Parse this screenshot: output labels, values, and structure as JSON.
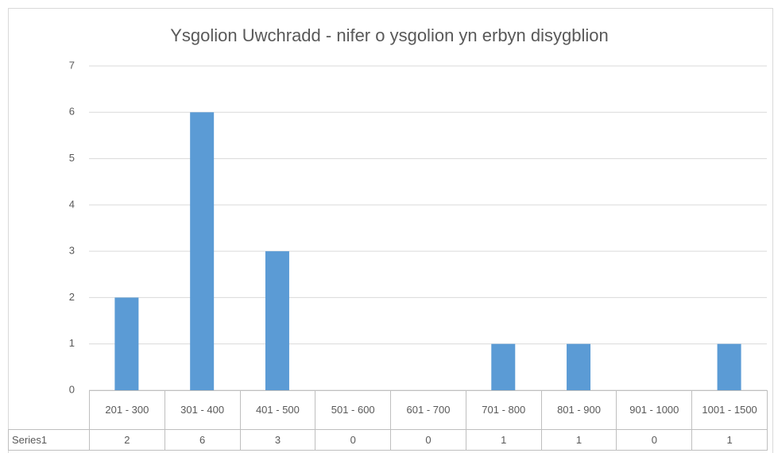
{
  "chart_data": {
    "type": "bar",
    "title": "Ysgolion Uwchradd - nifer o ysgolion yn erbyn disygblion",
    "categories": [
      "201 - 300",
      "301 - 400",
      "401 - 500",
      "501 - 600",
      "601 - 700",
      "701 - 800",
      "801 - 900",
      "901 - 1000",
      "1001 - 1500"
    ],
    "series": [
      {
        "name": "Series1",
        "color": "#5b9bd5",
        "values": [
          2,
          6,
          3,
          0,
          0,
          1,
          1,
          0,
          1
        ]
      }
    ],
    "ylim": [
      0,
      7
    ],
    "yticks": [
      0,
      1,
      2,
      3,
      4,
      5,
      6,
      7
    ],
    "grid": true,
    "data_table": true
  }
}
